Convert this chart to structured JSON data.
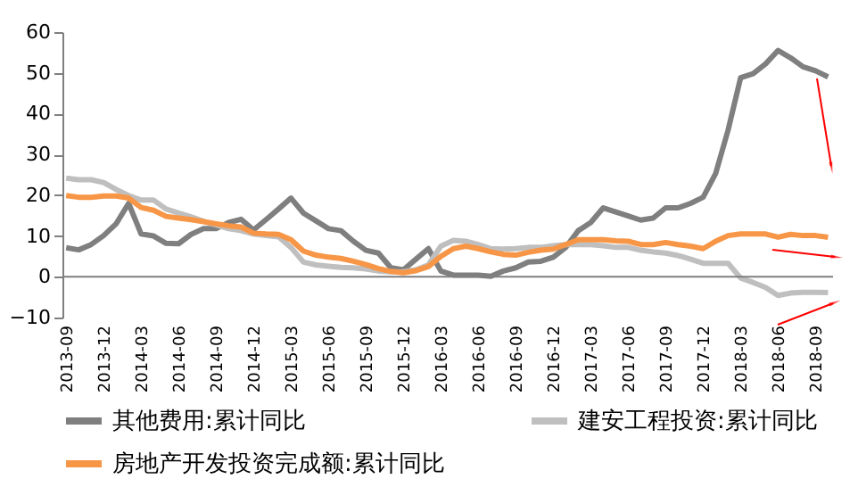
{
  "chart_data": {
    "type": "line",
    "categories": [
      "2013-09",
      null,
      null,
      "2013-12",
      null,
      null,
      "2014-03",
      null,
      null,
      "2014-06",
      null,
      null,
      "2014-09",
      null,
      null,
      "2014-12",
      null,
      null,
      "2015-03",
      null,
      null,
      "2015-06",
      null,
      null,
      "2015-09",
      null,
      null,
      "2015-12",
      null,
      null,
      "2016-03",
      null,
      null,
      "2016-06",
      null,
      null,
      "2016-09",
      null,
      null,
      "2016-12",
      null,
      null,
      "2017-03",
      null,
      null,
      "2017-06",
      null,
      null,
      "2017-09",
      null,
      null,
      "2017-12",
      null,
      null,
      "2018-03",
      null,
      null,
      "2018-06",
      null,
      null,
      "2018-09",
      null
    ],
    "series": [
      {
        "name": "其他费用:累计同比",
        "color": "#7f7f7f",
        "values": [
          7.1,
          6.6,
          7.9,
          10.1,
          13,
          18,
          10.5,
          10,
          8.2,
          8.1,
          10.4,
          11.8,
          11.8,
          13.3,
          14.1,
          11.5,
          14,
          16.6,
          19.3,
          15.6,
          13.7,
          11.8,
          11.3,
          8.7,
          6.5,
          5.8,
          2.2,
          1.7,
          4.3,
          6.9,
          1.4,
          0.4,
          0.4,
          0.4,
          0.1,
          1.4,
          2.2,
          3.6,
          3.8,
          4.8,
          7.2,
          11.3,
          13.3,
          16.9,
          15.9,
          14.9,
          13.9,
          14.4,
          16.9,
          16.9,
          18,
          19.5,
          25.3,
          36,
          48.8,
          49.8,
          52.2,
          55.5,
          53.7,
          51.5,
          50.5,
          49
        ]
      },
      {
        "name": "建安工程投资:累计同比",
        "color": "#bfbfbf",
        "values": [
          24.2,
          23.8,
          23.8,
          23.1,
          21.4,
          19.9,
          18.8,
          18.8,
          16.6,
          15.6,
          14.7,
          13.6,
          12.7,
          11.8,
          11.3,
          10.5,
          10.1,
          9.8,
          7.2,
          3.6,
          2.9,
          2.6,
          2.3,
          2.2,
          1.9,
          1.4,
          1.2,
          1.2,
          1.7,
          2.9,
          7.5,
          8.9,
          8.7,
          7.9,
          6.9,
          6.8,
          6.9,
          7.2,
          7.2,
          7.6,
          7.9,
          7.9,
          7.9,
          7.6,
          7.2,
          7.2,
          6.5,
          6.1,
          5.8,
          5.2,
          4.3,
          3.3,
          3.3,
          3.3,
          -0.3,
          -1.4,
          -2.6,
          -4.6,
          -4,
          -3.8,
          -3.8,
          -3.9
        ]
      },
      {
        "name": "房地产开发投资完成额:累计同比",
        "color": "#f79646",
        "values": [
          19.9,
          19.5,
          19.5,
          19.8,
          19.8,
          19.3,
          17,
          16.3,
          14.8,
          14.4,
          14,
          13.5,
          13,
          12.5,
          12.2,
          10.7,
          10.5,
          10.4,
          9.1,
          6.3,
          5.3,
          4.8,
          4.5,
          3.8,
          3,
          2,
          1.3,
          1,
          1.5,
          2.5,
          5,
          6.9,
          7.5,
          6.9,
          6.1,
          5.5,
          5.3,
          6,
          6.5,
          6.8,
          7.9,
          9.1,
          9.1,
          9.1,
          8.8,
          8.7,
          7.9,
          7.9,
          8.4,
          7.9,
          7.5,
          6.9,
          8.7,
          10.1,
          10.5,
          10.5,
          10.5,
          9.7,
          10.4,
          10.1,
          10.1,
          9.7
        ]
      }
    ],
    "ref_lines": [
      {
        "axis": "y",
        "value": 0,
        "color": "#7f7f7f"
      }
    ],
    "ylim": [
      -10,
      60
    ],
    "yticks": [
      -10,
      0,
      10,
      20,
      30,
      40,
      50,
      60
    ],
    "grid": false,
    "legend": "bottom"
  }
}
